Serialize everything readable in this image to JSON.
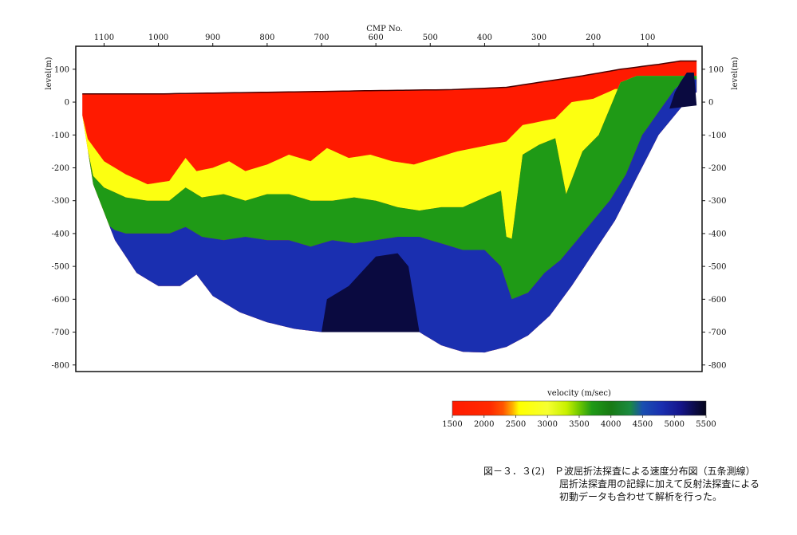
{
  "chart_data": {
    "type": "heatmap",
    "title": "",
    "top_axis_label": "CMP No.",
    "left_axis_label": "level(m)",
    "right_axis_label": "level(m)",
    "x_ticks": [
      "1100",
      "1000",
      "900",
      "800",
      "700",
      "600",
      "500",
      "400",
      "300",
      "200",
      "100"
    ],
    "x_tick_values": [
      1100,
      1000,
      900,
      800,
      700,
      600,
      500,
      400,
      300,
      200,
      100
    ],
    "xlim": [
      1152,
      0
    ],
    "y_ticks": [
      "100",
      "0",
      "-100",
      "-200",
      "-300",
      "-400",
      "-500",
      "-600",
      "-700",
      "-800"
    ],
    "y_tick_values": [
      100,
      0,
      -100,
      -200,
      -300,
      -400,
      -500,
      -600,
      -700,
      -800
    ],
    "ylim": [
      -820,
      170
    ],
    "grid": false,
    "surface": [
      [
        1140,
        25
      ],
      [
        1000,
        25
      ],
      [
        800,
        30
      ],
      [
        600,
        35
      ],
      [
        460,
        38
      ],
      [
        360,
        45
      ],
      [
        300,
        60
      ],
      [
        220,
        80
      ],
      [
        150,
        100
      ],
      [
        80,
        115
      ],
      [
        40,
        125
      ],
      [
        10,
        125
      ]
    ],
    "bottom": [
      [
        1140,
        -40
      ],
      [
        1120,
        -250
      ],
      [
        1080,
        -420
      ],
      [
        1040,
        -520
      ],
      [
        1000,
        -560
      ],
      [
        960,
        -560
      ],
      [
        930,
        -525
      ],
      [
        900,
        -590
      ],
      [
        850,
        -640
      ],
      [
        800,
        -670
      ],
      [
        750,
        -690
      ],
      [
        700,
        -700
      ],
      [
        650,
        -700
      ],
      [
        600,
        -695
      ],
      [
        560,
        -690
      ],
      [
        520,
        -700
      ],
      [
        480,
        -740
      ],
      [
        440,
        -760
      ],
      [
        400,
        -762
      ],
      [
        360,
        -745
      ],
      [
        320,
        -710
      ],
      [
        280,
        -650
      ],
      [
        240,
        -560
      ],
      [
        200,
        -460
      ],
      [
        160,
        -360
      ],
      [
        120,
        -230
      ],
      [
        80,
        -100
      ],
      [
        40,
        -20
      ],
      [
        15,
        30
      ]
    ],
    "boundaries": [
      {
        "velocity": 2500,
        "points": [
          [
            1140,
            -90
          ],
          [
            1100,
            -180
          ],
          [
            1060,
            -220
          ],
          [
            1020,
            -250
          ],
          [
            980,
            -240
          ],
          [
            950,
            -170
          ],
          [
            930,
            -210
          ],
          [
            900,
            -200
          ],
          [
            870,
            -180
          ],
          [
            840,
            -210
          ],
          [
            800,
            -190
          ],
          [
            760,
            -160
          ],
          [
            720,
            -180
          ],
          [
            690,
            -140
          ],
          [
            650,
            -170
          ],
          [
            610,
            -160
          ],
          [
            570,
            -180
          ],
          [
            530,
            -190
          ],
          [
            490,
            -170
          ],
          [
            450,
            -150
          ],
          [
            420,
            -140
          ],
          [
            390,
            -130
          ],
          [
            360,
            -120
          ],
          [
            330,
            -70
          ],
          [
            300,
            -60
          ],
          [
            270,
            -50
          ],
          [
            240,
            0
          ],
          [
            200,
            10
          ],
          [
            160,
            40
          ]
        ]
      },
      {
        "velocity": 3500,
        "points": [
          [
            1140,
            -190
          ],
          [
            1100,
            -260
          ],
          [
            1060,
            -290
          ],
          [
            1020,
            -300
          ],
          [
            980,
            -300
          ],
          [
            950,
            -260
          ],
          [
            920,
            -290
          ],
          [
            880,
            -280
          ],
          [
            840,
            -300
          ],
          [
            800,
            -280
          ],
          [
            760,
            -280
          ],
          [
            720,
            -300
          ],
          [
            680,
            -300
          ],
          [
            640,
            -290
          ],
          [
            600,
            -300
          ],
          [
            560,
            -320
          ],
          [
            520,
            -330
          ],
          [
            480,
            -320
          ],
          [
            440,
            -320
          ],
          [
            400,
            -290
          ],
          [
            370,
            -270
          ],
          [
            355,
            -480
          ],
          [
            330,
            -160
          ],
          [
            300,
            -130
          ],
          [
            270,
            -110
          ],
          [
            250,
            -280
          ],
          [
            220,
            -150
          ],
          [
            190,
            -100
          ],
          [
            170,
            -20
          ],
          [
            150,
            60
          ],
          [
            120,
            80
          ],
          [
            80,
            80
          ]
        ]
      },
      {
        "velocity": 4500,
        "points": [
          [
            1140,
            -330
          ],
          [
            1100,
            -380
          ],
          [
            1060,
            -400
          ],
          [
            1020,
            -400
          ],
          [
            980,
            -400
          ],
          [
            950,
            -380
          ],
          [
            920,
            -410
          ],
          [
            880,
            -420
          ],
          [
            840,
            -410
          ],
          [
            800,
            -420
          ],
          [
            760,
            -420
          ],
          [
            720,
            -440
          ],
          [
            680,
            -420
          ],
          [
            640,
            -430
          ],
          [
            600,
            -420
          ],
          [
            560,
            -410
          ],
          [
            520,
            -410
          ],
          [
            480,
            -430
          ],
          [
            440,
            -450
          ],
          [
            400,
            -450
          ],
          [
            370,
            -500
          ],
          [
            350,
            -600
          ],
          [
            320,
            -580
          ],
          [
            290,
            -520
          ],
          [
            260,
            -480
          ],
          [
            230,
            -420
          ],
          [
            200,
            -360
          ],
          [
            170,
            -300
          ],
          [
            140,
            -220
          ],
          [
            110,
            -100
          ],
          [
            80,
            -30
          ],
          [
            50,
            40
          ],
          [
            30,
            70
          ]
        ]
      },
      {
        "velocity": 5300,
        "points": [
          [
            700,
            -700
          ],
          [
            690,
            -600
          ],
          [
            650,
            -560
          ],
          [
            600,
            -470
          ],
          [
            560,
            -460
          ],
          [
            540,
            -500
          ],
          [
            520,
            -700
          ]
        ]
      },
      {
        "velocity": 5300,
        "points": [
          [
            60,
            -20
          ],
          [
            50,
            30
          ],
          [
            40,
            60
          ],
          [
            28,
            90
          ],
          [
            15,
            90
          ],
          [
            10,
            -10
          ]
        ]
      }
    ],
    "colorbar": {
      "label": "velocity (m/sec)",
      "min": 1500,
      "max": 5500,
      "ticks": [
        "1500",
        "2000",
        "2500",
        "3000",
        "3500",
        "4000",
        "4500",
        "5000",
        "5500"
      ],
      "tick_values": [
        1500,
        2000,
        2500,
        3000,
        3500,
        4000,
        4500,
        5000,
        5500
      ],
      "stops": [
        {
          "v": 1500,
          "color": "#ff1a00"
        },
        {
          "v": 2100,
          "color": "#ff2a00"
        },
        {
          "v": 2300,
          "color": "#ff5500"
        },
        {
          "v": 2450,
          "color": "#ffb000"
        },
        {
          "v": 2550,
          "color": "#ffff00"
        },
        {
          "v": 3000,
          "color": "#f6ff30"
        },
        {
          "v": 3300,
          "color": "#c8f000"
        },
        {
          "v": 3500,
          "color": "#6fc800"
        },
        {
          "v": 3700,
          "color": "#1f9a16"
        },
        {
          "v": 4000,
          "color": "#187a14"
        },
        {
          "v": 4300,
          "color": "#1a8a40"
        },
        {
          "v": 4500,
          "color": "#1a4fb0"
        },
        {
          "v": 4800,
          "color": "#1a2fb0"
        },
        {
          "v": 5100,
          "color": "#14148a"
        },
        {
          "v": 5350,
          "color": "#0a0a40"
        },
        {
          "v": 5500,
          "color": "#05051c"
        }
      ]
    }
  },
  "caption": {
    "line1": "図－３．３(2)　Ｐ波屈折法探査による速度分布図（五条測線）",
    "line2": "屈折法探査用の記録に加えて反射法探査による",
    "line3": "初動データも合わせて解析を行った。"
  }
}
